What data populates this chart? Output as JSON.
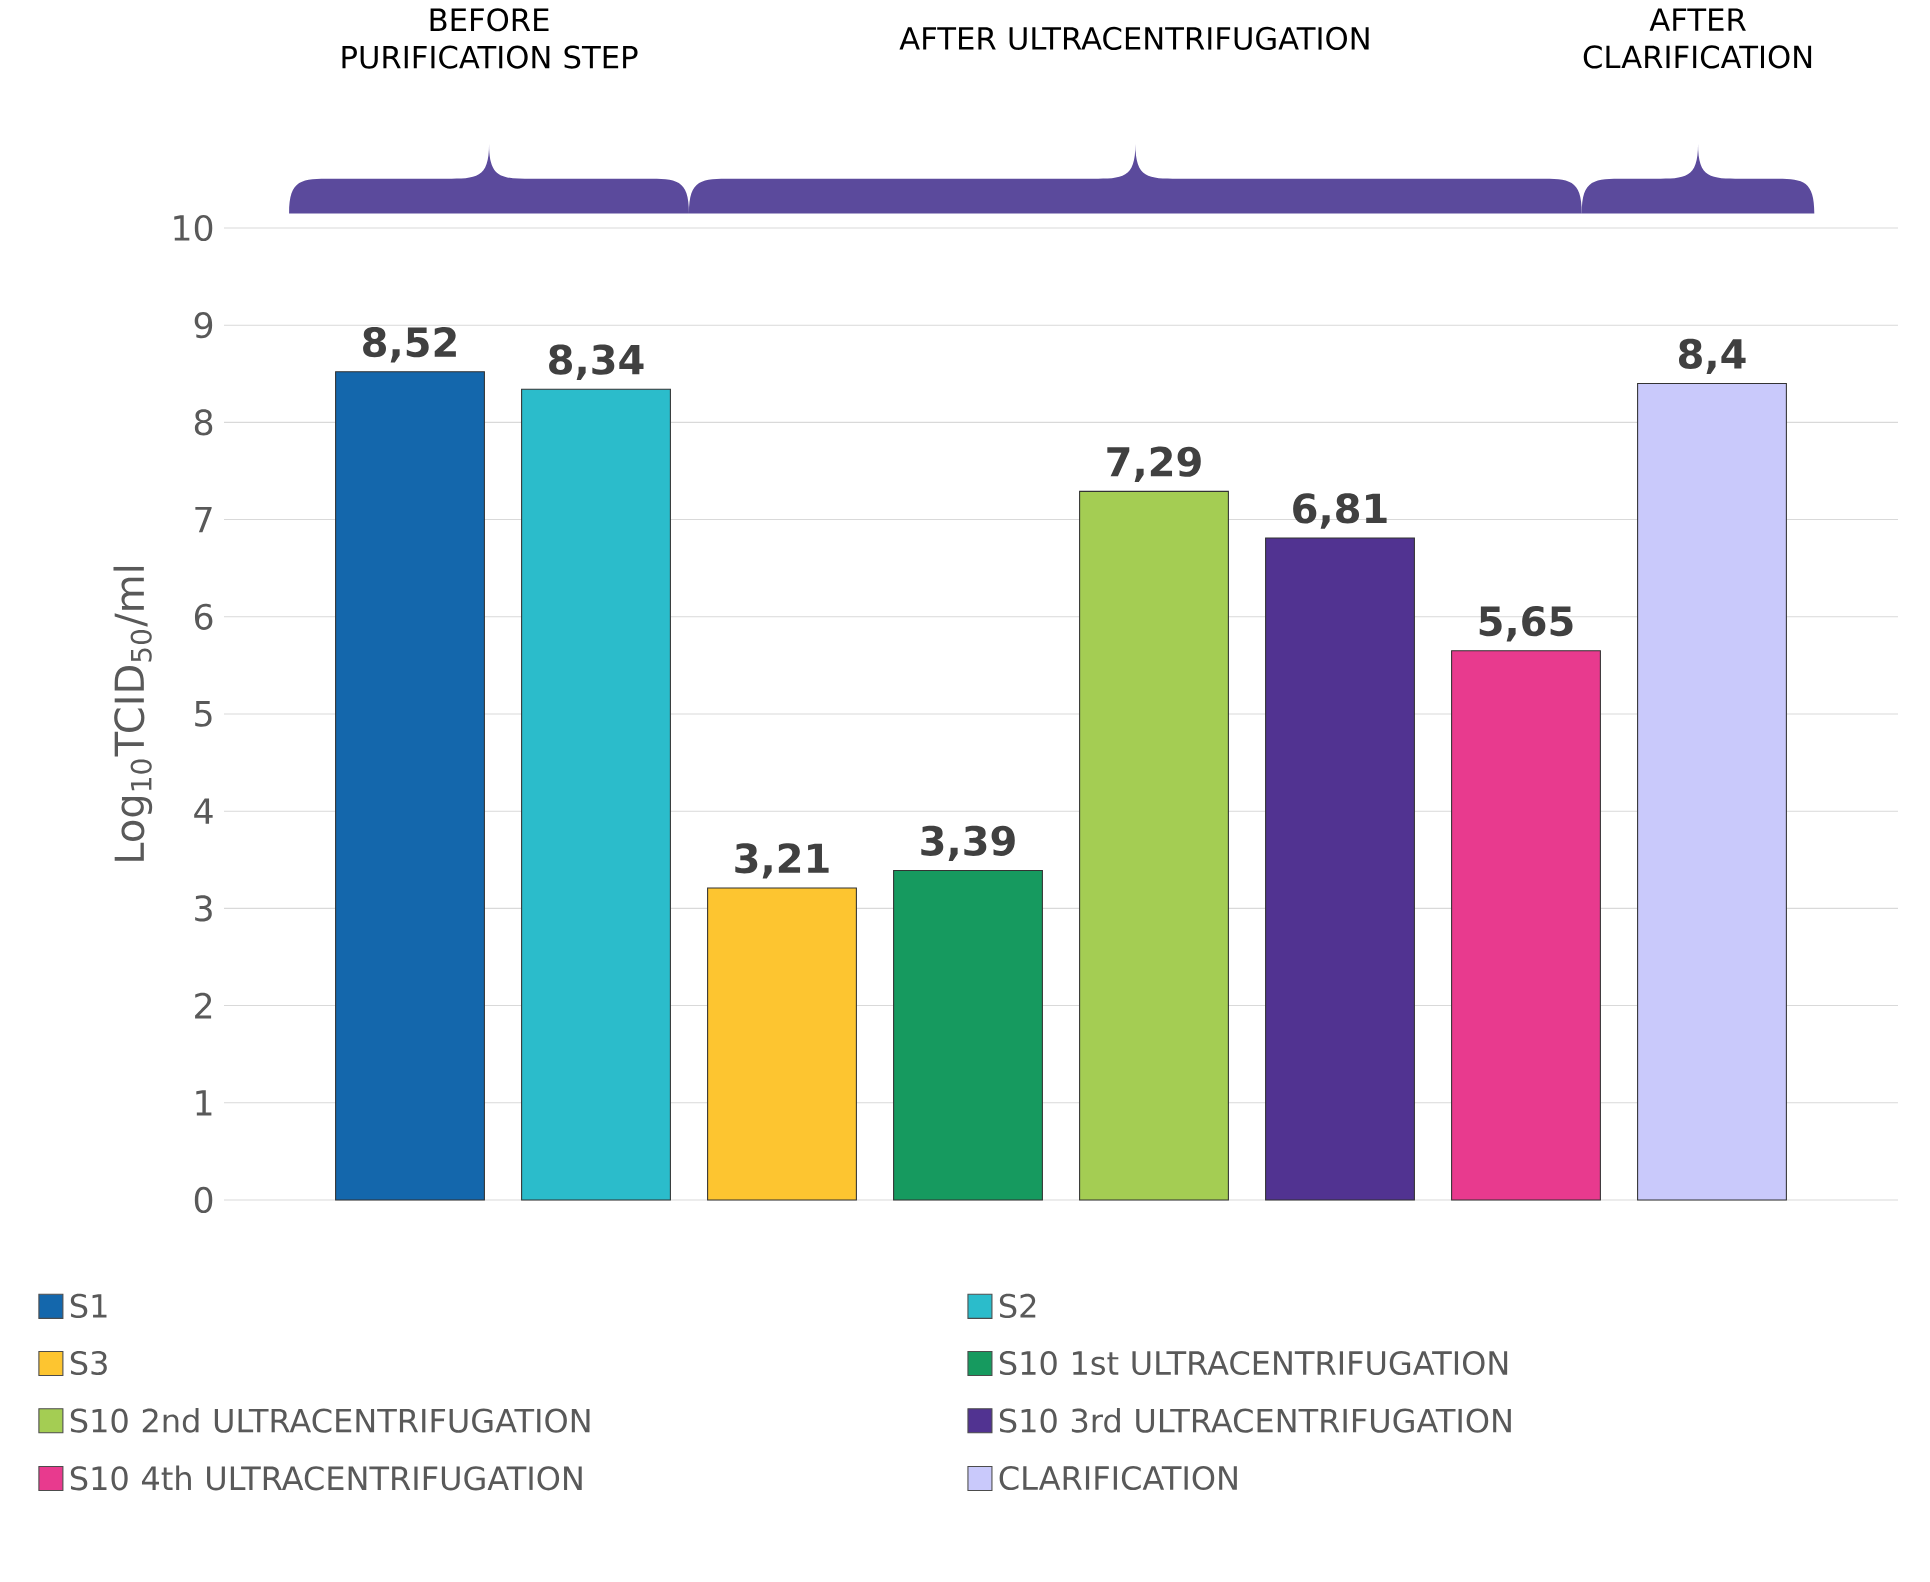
{
  "chart_data": {
    "type": "bar",
    "categories": [
      null,
      null,
      null,
      null,
      null,
      null,
      null,
      null
    ],
    "ylabel": "Log$_{10}$TCID$_{50}$/ml",
    "ylim": [
      0,
      10
    ],
    "yticks": [
      0,
      1,
      2,
      3,
      4,
      5,
      6,
      7,
      8,
      9,
      10
    ],
    "grid": "y",
    "legend": "bottom",
    "tick_labels": "y",
    "annotations": [
      "BEFORE PURIFICATION STEP",
      "AFTER ULTRACENTRIFUGATION",
      "AFTER CLARIFICATION"
    ],
    "series": [
      {
        "name": "S1",
        "color": "#1467ac",
        "values": [
          8.52,
          null,
          null,
          null,
          null,
          null,
          null,
          null
        ],
        "value_labels": [
          "8,52",
          null,
          null,
          null,
          null,
          null,
          null,
          null
        ]
      },
      {
        "name": "S2",
        "color": "#2bbccb",
        "values": [
          null,
          8.34,
          null,
          null,
          null,
          null,
          null,
          null
        ],
        "value_labels": [
          null,
          "8,34",
          null,
          null,
          null,
          null,
          null,
          null
        ]
      },
      {
        "name": "S3",
        "color": "#fdc530",
        "values": [
          null,
          null,
          3.21,
          null,
          null,
          null,
          null,
          null
        ],
        "value_labels": [
          null,
          null,
          "3,21",
          null,
          null,
          null,
          null,
          null
        ]
      },
      {
        "name": "S10 1st ULTRACENTRIFUGATION",
        "color": "#169a5f",
        "values": [
          null,
          null,
          null,
          3.39,
          null,
          null,
          null,
          null
        ],
        "value_labels": [
          null,
          null,
          null,
          "3,39",
          null,
          null,
          null,
          null
        ]
      },
      {
        "name": "S10 2nd ULTRACENTRIFUGATION",
        "color": "#a4cd53",
        "values": [
          null,
          null,
          null,
          null,
          7.29,
          null,
          null,
          null
        ],
        "value_labels": [
          null,
          null,
          null,
          null,
          "7,29",
          null,
          null,
          null
        ]
      },
      {
        "name": "S10 3rd ULTRACENTRIFUGATION",
        "color": "#513391",
        "values": [
          null,
          null,
          null,
          null,
          null,
          6.81,
          null,
          null
        ],
        "value_labels": [
          null,
          null,
          null,
          null,
          null,
          "6,81",
          null,
          null
        ]
      },
      {
        "name": "S10 4th ULTRACENTRIFUGATION",
        "color": "#e83a8e",
        "values": [
          null,
          null,
          null,
          null,
          null,
          null,
          5.65,
          null
        ],
        "value_labels": [
          null,
          null,
          null,
          null,
          null,
          null,
          "5,65",
          null
        ]
      },
      {
        "name": "CLARIFICATION",
        "color": "#c9c9fb",
        "values": [
          null,
          null,
          null,
          null,
          null,
          null,
          null,
          8.4
        ],
        "value_labels": [
          null,
          null,
          null,
          null,
          null,
          null,
          null,
          "8,4"
        ]
      }
    ]
  }
}
